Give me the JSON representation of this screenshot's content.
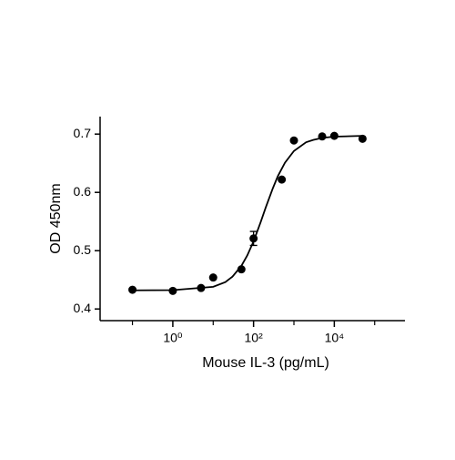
{
  "chart_data": {
    "type": "scatter",
    "xlabel": "Mouse IL-3 (pg/mL)",
    "ylabel": "OD 450nm",
    "log_x": true,
    "xlim": [
      0.0158,
      562000
    ],
    "ylim": [
      0.38,
      0.73
    ],
    "xticks": [
      {
        "value": 1,
        "label": "10⁰"
      },
      {
        "value": 100,
        "label": "10²"
      },
      {
        "value": 10000,
        "label": "10⁴"
      }
    ],
    "xminor": [
      0.1,
      10,
      1000,
      100000
    ],
    "yticks": [
      0.4,
      0.5,
      0.6,
      0.7
    ],
    "series": [
      {
        "color": "#000000",
        "x": [
          0.1,
          1,
          5,
          10,
          50,
          100,
          500,
          1000,
          5000,
          10000,
          50000
        ],
        "values": [
          0.433,
          0.431,
          0.436,
          0.454,
          0.468,
          0.521,
          0.622,
          0.689,
          0.696,
          0.697,
          0.692
        ],
        "errors": [
          null,
          null,
          null,
          null,
          null,
          0.012,
          null,
          null,
          null,
          null,
          null
        ]
      },
      {
        "color": "#000000",
        "type": "line",
        "x": [
          0.1,
          1,
          10,
          20,
          30,
          50,
          70,
          100,
          150,
          200,
          300,
          400,
          600,
          1000,
          2000,
          3000,
          5000,
          10000,
          50000
        ],
        "values": [
          0.432,
          0.4323,
          0.438,
          0.446,
          0.4555,
          0.474,
          0.492,
          0.516,
          0.549,
          0.574,
          0.607,
          0.628,
          0.651,
          0.671,
          0.686,
          0.69,
          0.6935,
          0.6956,
          0.697
        ]
      }
    ]
  }
}
